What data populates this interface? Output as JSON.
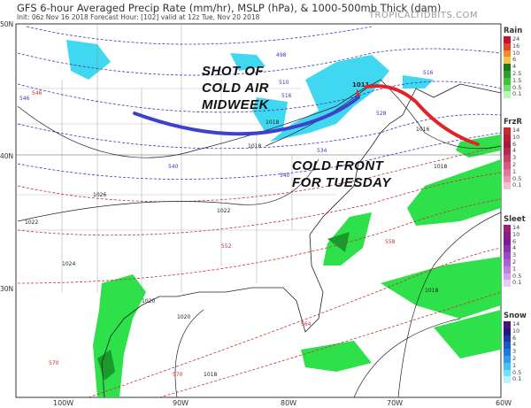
{
  "header": {
    "title": "GFS 6-hour Averaged Precip Rate (mm/hr), MSLP (hPa), & 1000-500mb Thick (dam)",
    "subtitle": "Init: 06z Nov 16 2018   Forecast Hour: [102]   valid at 12z Tue, Nov 20 2018",
    "brand": "TROPICALTIDBITS.COM"
  },
  "axes": {
    "lat_labels": [
      "50N",
      "40N",
      "30N"
    ],
    "lon_labels": [
      "100W",
      "90W",
      "80W",
      "70W",
      "60W"
    ]
  },
  "annotations": {
    "cold_air": [
      "SHOT OF",
      "COLD AIR",
      "MIDWEEK"
    ],
    "cold_front": [
      "COLD FRONT",
      "FOR TUESDAY"
    ],
    "cold_air_line_color": "#3f3fd0",
    "front_line_color": "#e0242a"
  },
  "contour_labels": {
    "isobars": [
      "1022",
      "1018",
      "1026",
      "1022",
      "1024",
      "1018",
      "1018",
      "1020",
      "1020",
      "1018",
      "1016",
      "1018",
      "1011"
    ],
    "thickness_blue": [
      "498",
      "510",
      "516",
      "516",
      "528",
      "534",
      "540",
      "540",
      "546"
    ],
    "thickness_red": [
      "546",
      "552",
      "558",
      "564",
      "570",
      "570"
    ]
  },
  "legend": [
    {
      "title": "Rain",
      "labels": [
        "24",
        "16",
        "10",
        "6",
        "4",
        "2.5",
        "1.5",
        "0.5",
        "0.1"
      ],
      "colors": [
        "#cc33cc",
        "#e0157a",
        "#c8102e",
        "#e8402a",
        "#f08a2c",
        "#f5c542",
        "#1a7a1a",
        "#2aa02a",
        "#3cc43c",
        "#6fe06f",
        "#b8f5b8"
      ]
    },
    {
      "title": "FrzR",
      "labels": [
        "14",
        "10",
        "6",
        "4",
        "3",
        "2",
        "1",
        "0.5",
        "0.1"
      ],
      "colors": [
        "#e8601a",
        "#dd4a1e",
        "#cc2a2a",
        "#b81e3a",
        "#a8183e",
        "#b8284e",
        "#c84268",
        "#d65a80",
        "#e07898",
        "#ea98b2",
        "#f4c0d0"
      ]
    },
    {
      "title": "Sleet",
      "labels": [
        "14",
        "10",
        "6",
        "4",
        "3",
        "2",
        "1",
        "0.5",
        "0.1"
      ],
      "colors": [
        "#c83a5a",
        "#b82a6a",
        "#a01e78",
        "#8a1a88",
        "#7a1a98",
        "#8a30b0",
        "#9a48c4",
        "#aa62d4",
        "#bc80e0",
        "#d0a4ec",
        "#e6ccf6"
      ]
    },
    {
      "title": "Snow",
      "labels": [
        "14",
        "10",
        "6",
        "4",
        "3",
        "2",
        "1",
        "0.5",
        "0.1"
      ],
      "colors": [
        "#d0107a",
        "#9a1078",
        "#50107a",
        "#1a1a80",
        "#1a3aa0",
        "#1a5ac0",
        "#1a7ade",
        "#2a9ef0",
        "#40c4f6",
        "#70e2fa",
        "#b8f4fc"
      ]
    }
  ],
  "colors": {
    "light_precip": "#2ee04a",
    "snow": "#40d8f0",
    "isobar": "#222222",
    "thick_cold": "#3838b8",
    "thick_warm": "#c83030"
  }
}
